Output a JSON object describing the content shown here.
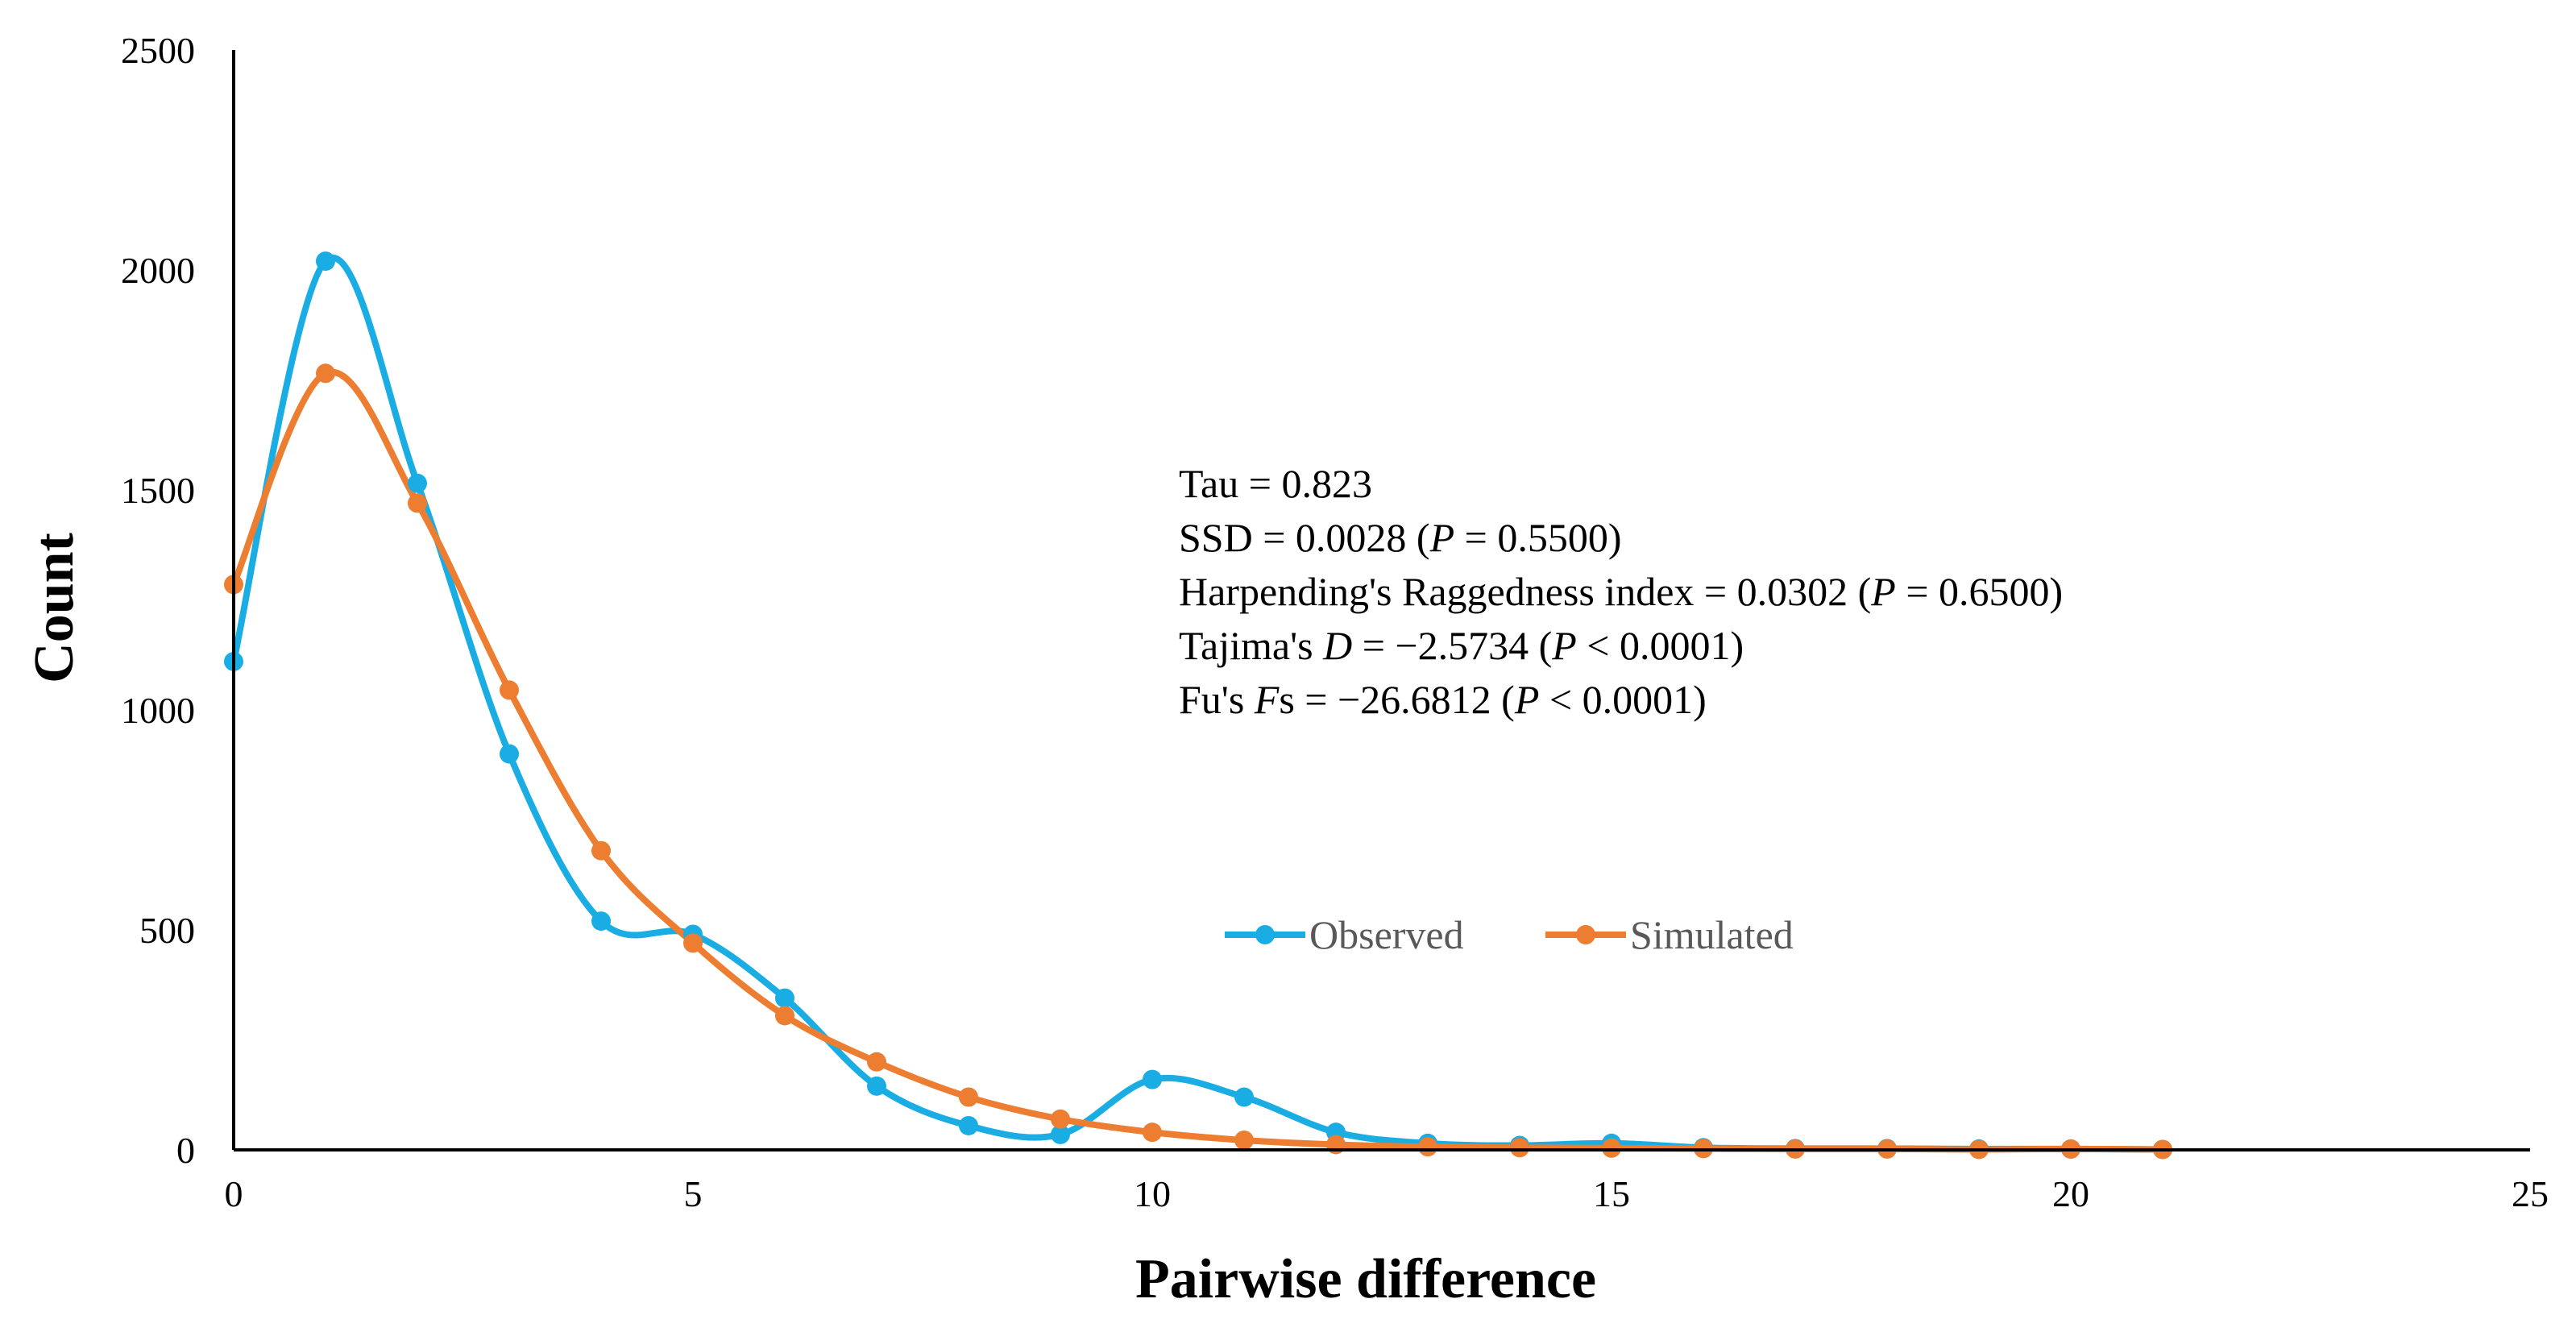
{
  "chart_data": {
    "type": "line",
    "smoothed": true,
    "xlabel": "Pairwise difference",
    "ylabel": "Count",
    "xlim": [
      0,
      25
    ],
    "ylim": [
      0,
      2500
    ],
    "xticks": [
      0,
      5,
      10,
      15,
      20,
      25
    ],
    "yticks": [
      0,
      500,
      1000,
      1500,
      2000,
      2500
    ],
    "grid": false,
    "legend": "center-right",
    "series": [
      {
        "name": "Observed",
        "color": "#1AADE4",
        "x": [
          0,
          1,
          2,
          3,
          4,
          5,
          6,
          7,
          8,
          9,
          10,
          11,
          12,
          13,
          14,
          15,
          16,
          17,
          18,
          19,
          20,
          21
        ],
        "values": [
          1110,
          2020,
          1515,
          900,
          520,
          490,
          345,
          145,
          55,
          35,
          160,
          120,
          40,
          15,
          10,
          15,
          5,
          3,
          3,
          2,
          2,
          1
        ]
      },
      {
        "name": "Simulated",
        "color": "#ED7D31",
        "x": [
          0,
          1,
          2,
          3,
          4,
          5,
          6,
          7,
          8,
          9,
          10,
          11,
          12,
          13,
          14,
          15,
          16,
          17,
          18,
          19,
          20,
          21
        ],
        "values": [
          1285,
          1765,
          1470,
          1045,
          680,
          470,
          305,
          200,
          120,
          70,
          40,
          22,
          12,
          7,
          5,
          4,
          3,
          2,
          2,
          1,
          2,
          1
        ]
      }
    ],
    "annotations": [
      {
        "prefix": "Tau = 0.823",
        "italic": "",
        "suffix": ""
      },
      {
        "prefix": "SSD = 0.0028 (",
        "italic": "P",
        "suffix": " = 0.5500)"
      },
      {
        "prefix": "Harpending's Raggedness index = 0.0302 (",
        "italic": "P",
        "suffix": " = 0.6500)"
      },
      {
        "prefix": "Tajima's ",
        "italic": "D",
        "suffix": " = −2.5734 (",
        "italic2": "P",
        "suffix2": " < 0.0001)"
      },
      {
        "prefix": "Fu's ",
        "italic": "F",
        "suffix": "s = −26.6812 (",
        "italic2": "P",
        "suffix2": " < 0.0001)"
      }
    ]
  }
}
